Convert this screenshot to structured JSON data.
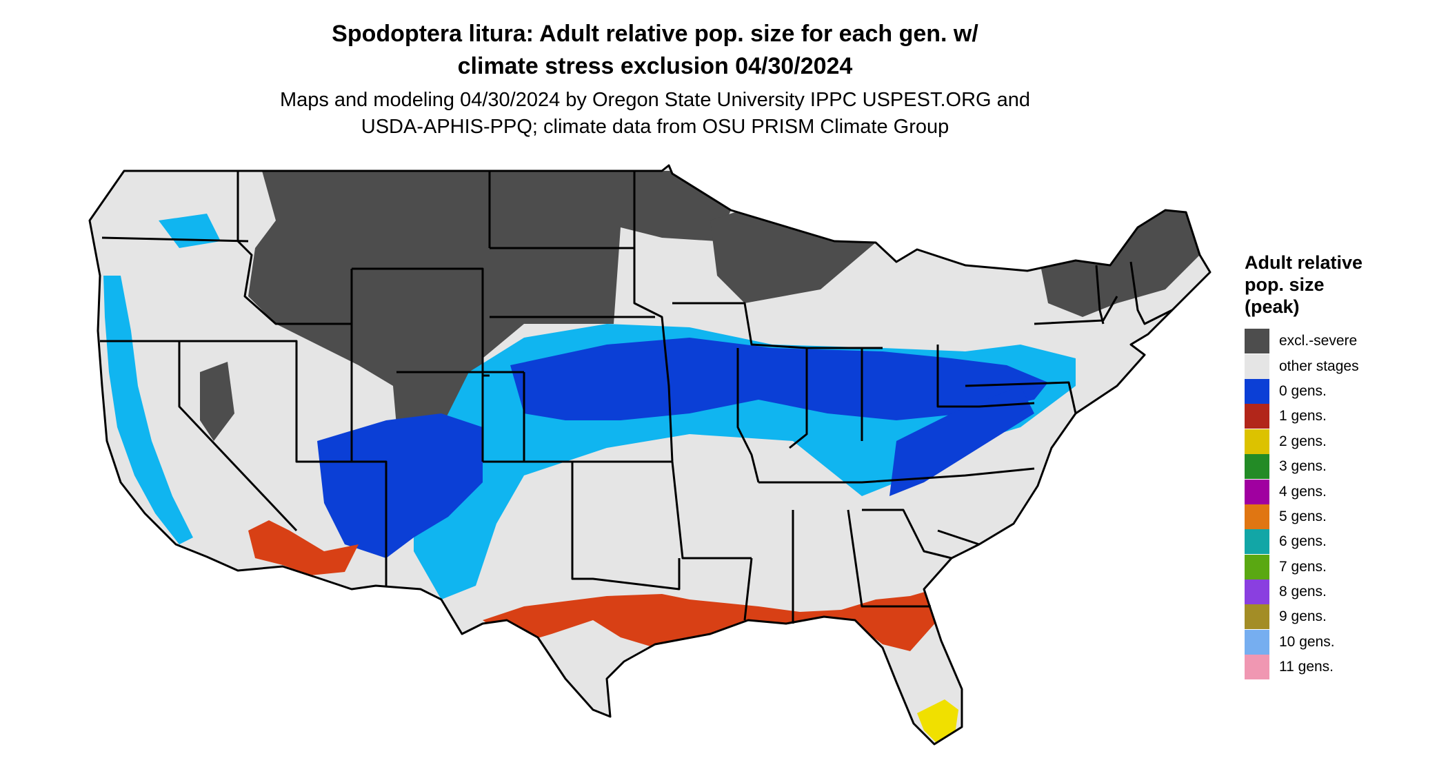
{
  "title_line1": "Spodoptera litura: Adult relative pop. size for each gen. w/",
  "title_line2": "climate stress exclusion 04/30/2024",
  "subtitle_line1": "Maps and modeling 04/30/2024 by Oregon State University IPPC USPEST.ORG and",
  "subtitle_line2": "USDA-APHIS-PPQ; climate data from OSU PRISM Climate Group",
  "legend": {
    "title_line1": "Adult relative",
    "title_line2": "pop. size",
    "title_line3": "(peak)",
    "items": [
      {
        "label": "excl.-severe",
        "color": "#4d4d4d"
      },
      {
        "label": "other stages",
        "color": "#e5e5e5"
      },
      {
        "label": "0 gens.",
        "color": "#0b3fd6"
      },
      {
        "label": "1 gens.",
        "color": "#b2261a"
      },
      {
        "label": "2 gens.",
        "color": "#dcc200"
      },
      {
        "label": "3 gens.",
        "color": "#238b26"
      },
      {
        "label": "4 gens.",
        "color": "#a000a0"
      },
      {
        "label": "5 gens.",
        "color": "#e07612"
      },
      {
        "label": "6 gens.",
        "color": "#12a6a6"
      },
      {
        "label": "7 gens.",
        "color": "#5aa812"
      },
      {
        "label": "8 gens.",
        "color": "#8a3fe0"
      },
      {
        "label": "9 gens.",
        "color": "#a38d26"
      },
      {
        "label": "10 gens.",
        "color": "#76aef0"
      },
      {
        "label": "11 gens.",
        "color": "#f097b2"
      }
    ]
  },
  "map_colors": {
    "other": "#e5e5e5",
    "excluded": "#4d4d4d",
    "zero_gens_dark": "#0b3fd6",
    "zero_gens_light": "#10b5f0",
    "one_gen": "#d84015",
    "two_gens": "#f0e000",
    "border": "#000000"
  }
}
